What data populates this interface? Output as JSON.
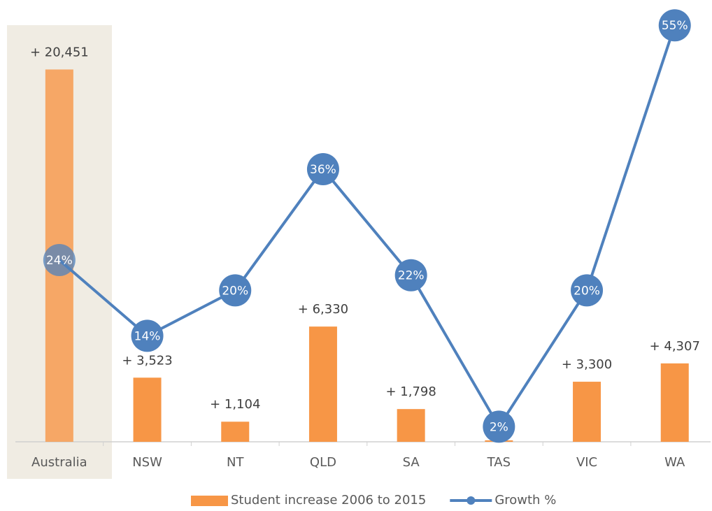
{
  "chart_data": {
    "type": "combo",
    "categories": [
      "Australia",
      "NSW",
      "NT",
      "QLD",
      "SA",
      "TAS",
      "VIC",
      "WA"
    ],
    "series": [
      {
        "name": "Student increase 2006 to 2015",
        "type": "bar",
        "color": "#f79646",
        "values": [
          20451,
          3523,
          1104,
          6330,
          1798,
          80,
          3300,
          4307
        ],
        "value_labels": [
          "+ 20,451",
          "+ 3,523",
          "+ 1,104",
          "+ 6,330",
          "+ 1,798",
          null,
          "+ 3,300",
          "+ 4,307"
        ]
      },
      {
        "name": "Growth %",
        "type": "line",
        "axis": "y2",
        "color": "#4f81bd",
        "values": [
          24,
          14,
          20,
          36,
          22,
          2,
          20,
          55
        ],
        "value_labels": [
          "24%",
          "14%",
          "20%",
          "36%",
          "22%",
          "2%",
          "20%",
          "55%"
        ]
      }
    ],
    "ylim": [
      0,
      23500
    ],
    "y2lim": [
      0,
      56.5
    ],
    "legend": "bottom"
  }
}
